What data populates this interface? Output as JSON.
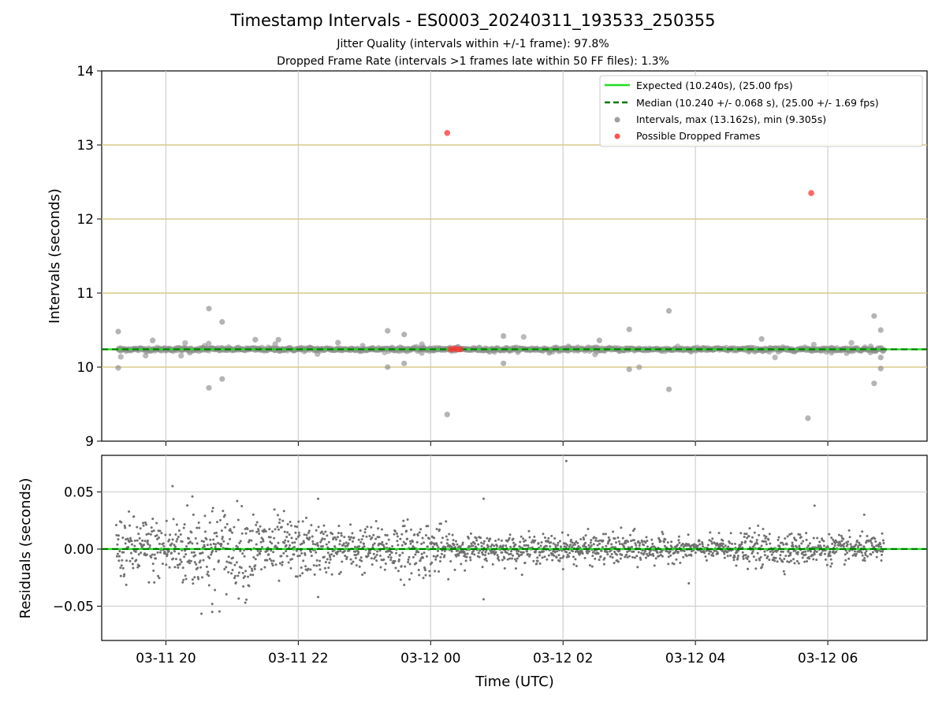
{
  "header": {
    "title": "Timestamp Intervals - ES0003_20240311_193533_250355",
    "subtitle1": "Jitter Quality (intervals within +/-1 frame): 97.8%",
    "subtitle2": "Dropped Frame Rate (intervals >1 frames late within 50 FF files): 1.3%"
  },
  "chart_data": [
    {
      "type": "scatter",
      "panel": "intervals",
      "ylabel": "Intervals (seconds)",
      "xlabel": "",
      "ylim": [
        9,
        14
      ],
      "yticks": [
        "9",
        "10",
        "11",
        "12",
        "13",
        "14"
      ],
      "xlim_hours": [
        -0.97,
        11.5
      ],
      "xticks": [
        "03-11 20",
        "03-11 22",
        "03-12 00",
        "03-12 02",
        "03-12 04",
        "03-12 06"
      ],
      "grid": true,
      "horizontal_bands": [
        10.0,
        11.0,
        12.0,
        13.0
      ],
      "expected_interval": 10.24,
      "median_interval": 10.24,
      "legend_position": "top-right",
      "legend": [
        {
          "label": "Expected (10.240s), (25.00 fps)",
          "style": "line",
          "color": "#22dd22"
        },
        {
          "label": "Median (10.240 +/- 0.068 s), (25.00 +/- 1.69 fps)",
          "style": "dashed",
          "color": "#007700"
        },
        {
          "label": "Intervals, max (13.162s), min (9.305s)",
          "style": "dot",
          "color": "#a0a0a0"
        },
        {
          "label": "Possible Dropped Frames",
          "style": "dot",
          "color": "#ff5555"
        }
      ],
      "series": [
        {
          "name": "Intervals, max (13.162s), min (9.305s)",
          "color": "#8c8c8c",
          "outliers": [
            {
              "t": -0.72,
              "y": 10.48
            },
            {
              "t": -0.72,
              "y": 9.99
            },
            {
              "t": -0.2,
              "y": 10.36
            },
            {
              "t": 0.65,
              "y": 10.79
            },
            {
              "t": 0.65,
              "y": 9.72
            },
            {
              "t": 0.85,
              "y": 10.61
            },
            {
              "t": 0.85,
              "y": 9.84
            },
            {
              "t": 1.35,
              "y": 10.37
            },
            {
              "t": 1.7,
              "y": 10.37
            },
            {
              "t": 2.6,
              "y": 10.33
            },
            {
              "t": 3.35,
              "y": 10.49
            },
            {
              "t": 3.35,
              "y": 10.0
            },
            {
              "t": 3.6,
              "y": 10.44
            },
            {
              "t": 3.6,
              "y": 10.05
            },
            {
              "t": 4.25,
              "y": 9.36
            },
            {
              "t": 5.1,
              "y": 10.42
            },
            {
              "t": 5.1,
              "y": 10.05
            },
            {
              "t": 6.55,
              "y": 10.36
            },
            {
              "t": 7.0,
              "y": 10.51
            },
            {
              "t": 7.0,
              "y": 9.97
            },
            {
              "t": 7.6,
              "y": 10.76
            },
            {
              "t": 7.6,
              "y": 9.7
            },
            {
              "t": 9.0,
              "y": 10.38
            },
            {
              "t": 9.7,
              "y": 9.31
            },
            {
              "t": 10.7,
              "y": 10.69
            },
            {
              "t": 10.7,
              "y": 9.78
            },
            {
              "t": 10.8,
              "y": 10.5
            },
            {
              "t": 10.8,
              "y": 9.98
            },
            {
              "t": 10.8,
              "y": 10.13
            }
          ]
        },
        {
          "name": "Possible Dropped Frames",
          "color": "#ff3333",
          "points": [
            {
              "t": 4.25,
              "y": 13.162
            },
            {
              "t": 9.75,
              "y": 12.35
            },
            {
              "t": 4.3,
              "y": 10.24
            },
            {
              "t": 4.35,
              "y": 10.25
            },
            {
              "t": 4.4,
              "y": 10.24
            },
            {
              "t": 4.45,
              "y": 10.24
            }
          ]
        }
      ]
    },
    {
      "type": "scatter",
      "panel": "residuals",
      "ylabel": "Residuals (seconds)",
      "xlabel": "Time (UTC)",
      "ylim": [
        -0.08,
        0.082
      ],
      "yticks": [
        "−0.05",
        "0.00",
        "0.05"
      ],
      "xticks": [
        "03-11 20",
        "03-11 22",
        "03-12 00",
        "03-12 02",
        "03-12 04",
        "03-12 06"
      ],
      "grid": true,
      "baseline": 0.0,
      "series": [
        {
          "name": "Residuals",
          "color": "#707070",
          "spread_profile": [
            {
              "t": -0.75,
              "sd": 0.014
            },
            {
              "t": 0.0,
              "sd": 0.014
            },
            {
              "t": 0.5,
              "sd": 0.02
            },
            {
              "t": 1.0,
              "sd": 0.018
            },
            {
              "t": 2.0,
              "sd": 0.013
            },
            {
              "t": 2.5,
              "sd": 0.01
            },
            {
              "t": 3.0,
              "sd": 0.01
            },
            {
              "t": 3.5,
              "sd": 0.012
            },
            {
              "t": 4.0,
              "sd": 0.012
            },
            {
              "t": 4.5,
              "sd": 0.006
            },
            {
              "t": 6.0,
              "sd": 0.006
            },
            {
              "t": 7.0,
              "sd": 0.007
            },
            {
              "t": 8.0,
              "sd": 0.004
            },
            {
              "t": 9.0,
              "sd": 0.008
            },
            {
              "t": 10.0,
              "sd": 0.006
            },
            {
              "t": 11.0,
              "sd": 0.005
            }
          ],
          "outliers": [
            {
              "t": 0.1,
              "y": 0.055
            },
            {
              "t": 0.4,
              "y": 0.046
            },
            {
              "t": 0.7,
              "y": -0.048
            },
            {
              "t": 0.7,
              "y": -0.055
            },
            {
              "t": 1.2,
              "y": -0.047
            },
            {
              "t": 2.3,
              "y": 0.044
            },
            {
              "t": 2.3,
              "y": -0.042
            },
            {
              "t": 4.8,
              "y": 0.044
            },
            {
              "t": 4.8,
              "y": -0.044
            },
            {
              "t": 6.05,
              "y": 0.077
            },
            {
              "t": 7.9,
              "y": -0.03
            },
            {
              "t": 9.8,
              "y": 0.038
            },
            {
              "t": 10.55,
              "y": 0.03
            }
          ]
        }
      ]
    }
  ]
}
